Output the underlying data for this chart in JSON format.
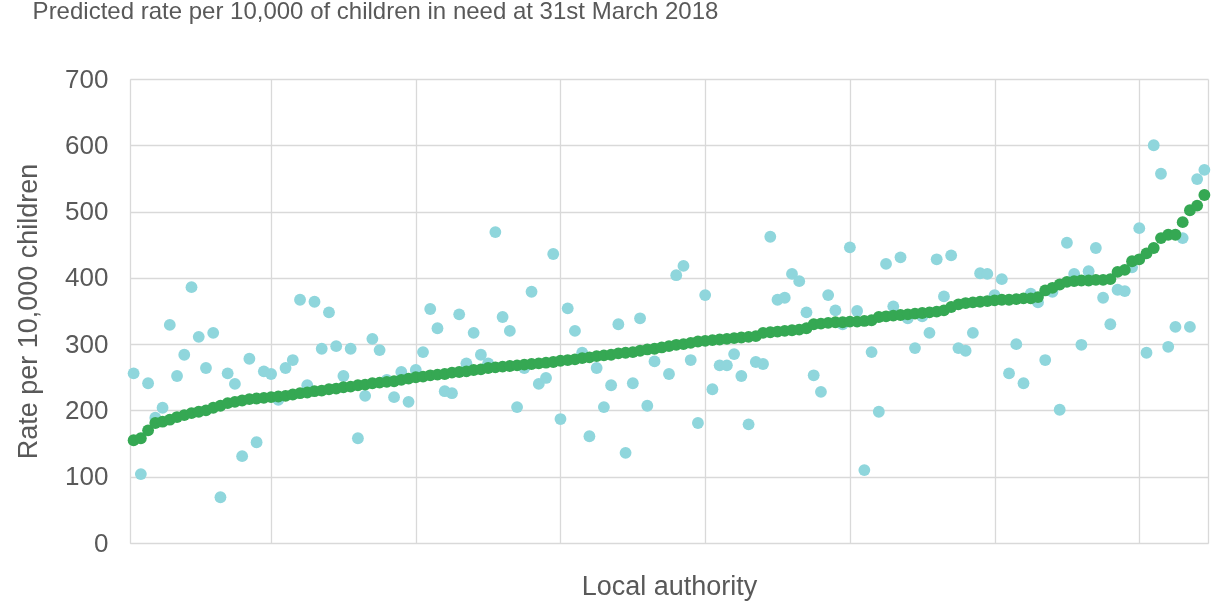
{
  "chart_data": {
    "type": "scatter",
    "title": "Predicted rate per 10,000 of children in need at 31st March 2018",
    "xlabel": "Local authority",
    "ylabel": "Rate per 10,000 children",
    "categories": [
      null,
      null,
      null,
      null,
      null,
      null,
      null,
      null,
      null,
      null,
      null,
      null,
      null,
      null,
      null,
      null,
      null,
      null,
      null,
      null,
      null,
      null,
      null,
      null,
      null,
      null,
      null,
      null,
      null,
      null,
      null,
      null,
      null,
      null,
      null,
      null,
      null,
      null,
      null,
      null,
      null,
      null,
      null,
      null,
      null,
      null,
      null,
      null,
      null,
      null,
      null,
      null,
      null,
      null,
      null,
      null,
      null,
      null,
      null,
      null,
      null,
      null,
      null,
      null,
      null,
      null,
      null,
      null,
      null,
      null,
      null,
      null,
      null,
      null,
      null,
      null,
      null,
      null,
      null,
      null,
      null,
      null,
      null,
      null,
      null,
      null,
      null,
      null,
      null,
      null,
      null,
      null,
      null,
      null,
      null,
      null,
      null,
      null,
      null,
      null,
      null,
      null,
      null,
      null,
      null,
      null,
      null,
      null,
      null,
      null,
      null,
      null,
      null,
      null,
      null,
      null,
      null,
      null,
      null,
      null,
      null,
      null,
      null,
      null,
      null,
      null,
      null,
      null,
      null,
      null,
      null,
      null,
      null,
      null,
      null,
      null,
      null,
      null,
      null,
      null,
      null,
      null,
      null,
      null,
      null,
      null,
      null,
      null,
      null
    ],
    "series": [
      {
        "color": "#8fd6dc",
        "values": [
          256,
          104,
          241,
          189,
          204,
          329,
          252,
          284,
          386,
          311,
          264,
          317,
          69,
          256,
          240,
          131,
          278,
          152,
          259,
          255,
          216,
          264,
          276,
          367,
          238,
          364,
          293,
          348,
          297,
          252,
          293,
          158,
          222,
          308,
          291,
          246,
          220,
          258,
          213,
          261,
          288,
          353,
          324,
          229,
          226,
          345,
          271,
          317,
          284,
          271,
          469,
          341,
          320,
          205,
          264,
          379,
          240,
          249,
          436,
          187,
          354,
          320,
          287,
          161,
          264,
          205,
          238,
          330,
          136,
          241,
          339,
          207,
          274,
          null,
          255,
          404,
          418,
          276,
          181,
          374,
          232,
          268,
          268,
          285,
          252,
          179,
          273,
          270,
          462,
          367,
          370,
          406,
          395,
          348,
          253,
          228,
          374,
          351,
          330,
          446,
          350,
          110,
          288,
          198,
          421,
          357,
          431,
          339,
          294,
          342,
          317,
          428,
          372,
          434,
          294,
          290,
          317,
          407,
          406,
          374,
          398,
          256,
          300,
          241,
          376,
          363,
          276,
          379,
          201,
          453,
          406,
          299,
          410,
          445,
          370,
          330,
          382,
          380,
          416,
          475,
          287,
          600,
          557,
          296,
          326,
          460,
          326,
          549,
          563
        ]
      },
      {
        "color": "#35a853",
        "values": [
          155,
          158,
          170,
          181,
          183,
          186,
          190,
          193,
          196,
          198,
          200,
          204,
          207,
          211,
          213,
          215,
          217,
          218,
          219,
          220,
          221,
          222,
          224,
          226,
          227,
          229,
          230,
          232,
          233,
          235,
          236,
          238,
          239,
          241,
          242,
          243,
          244,
          246,
          248,
          250,
          251,
          253,
          254,
          255,
          257,
          258,
          259,
          261,
          262,
          264,
          265,
          266,
          267,
          268,
          269,
          270,
          271,
          272,
          273,
          275,
          276,
          277,
          279,
          280,
          282,
          283,
          284,
          286,
          287,
          288,
          290,
          292,
          293,
          295,
          297,
          299,
          300,
          302,
          304,
          305,
          306,
          307,
          308,
          309,
          310,
          311,
          312,
          317,
          318,
          319,
          320,
          321,
          322,
          324,
          330,
          331,
          332,
          333,
          333,
          334,
          334,
          335,
          336,
          341,
          342,
          343,
          344,
          345,
          346,
          347,
          348,
          349,
          351,
          356,
          360,
          362,
          363,
          364,
          365,
          366,
          367,
          367,
          368,
          369,
          369,
          371,
          381,
          385,
          390,
          394,
          395,
          396,
          396,
          397,
          397,
          398,
          409,
          412,
          425,
          428,
          437,
          445,
          460,
          465,
          465,
          484,
          502,
          509,
          525
        ]
      }
    ],
    "ylim": [
      0,
      700
    ],
    "yticks": [
      0,
      100,
      200,
      300,
      400,
      500,
      600,
      700
    ],
    "grid": true,
    "tick_labels": "y",
    "marker": "circle"
  }
}
